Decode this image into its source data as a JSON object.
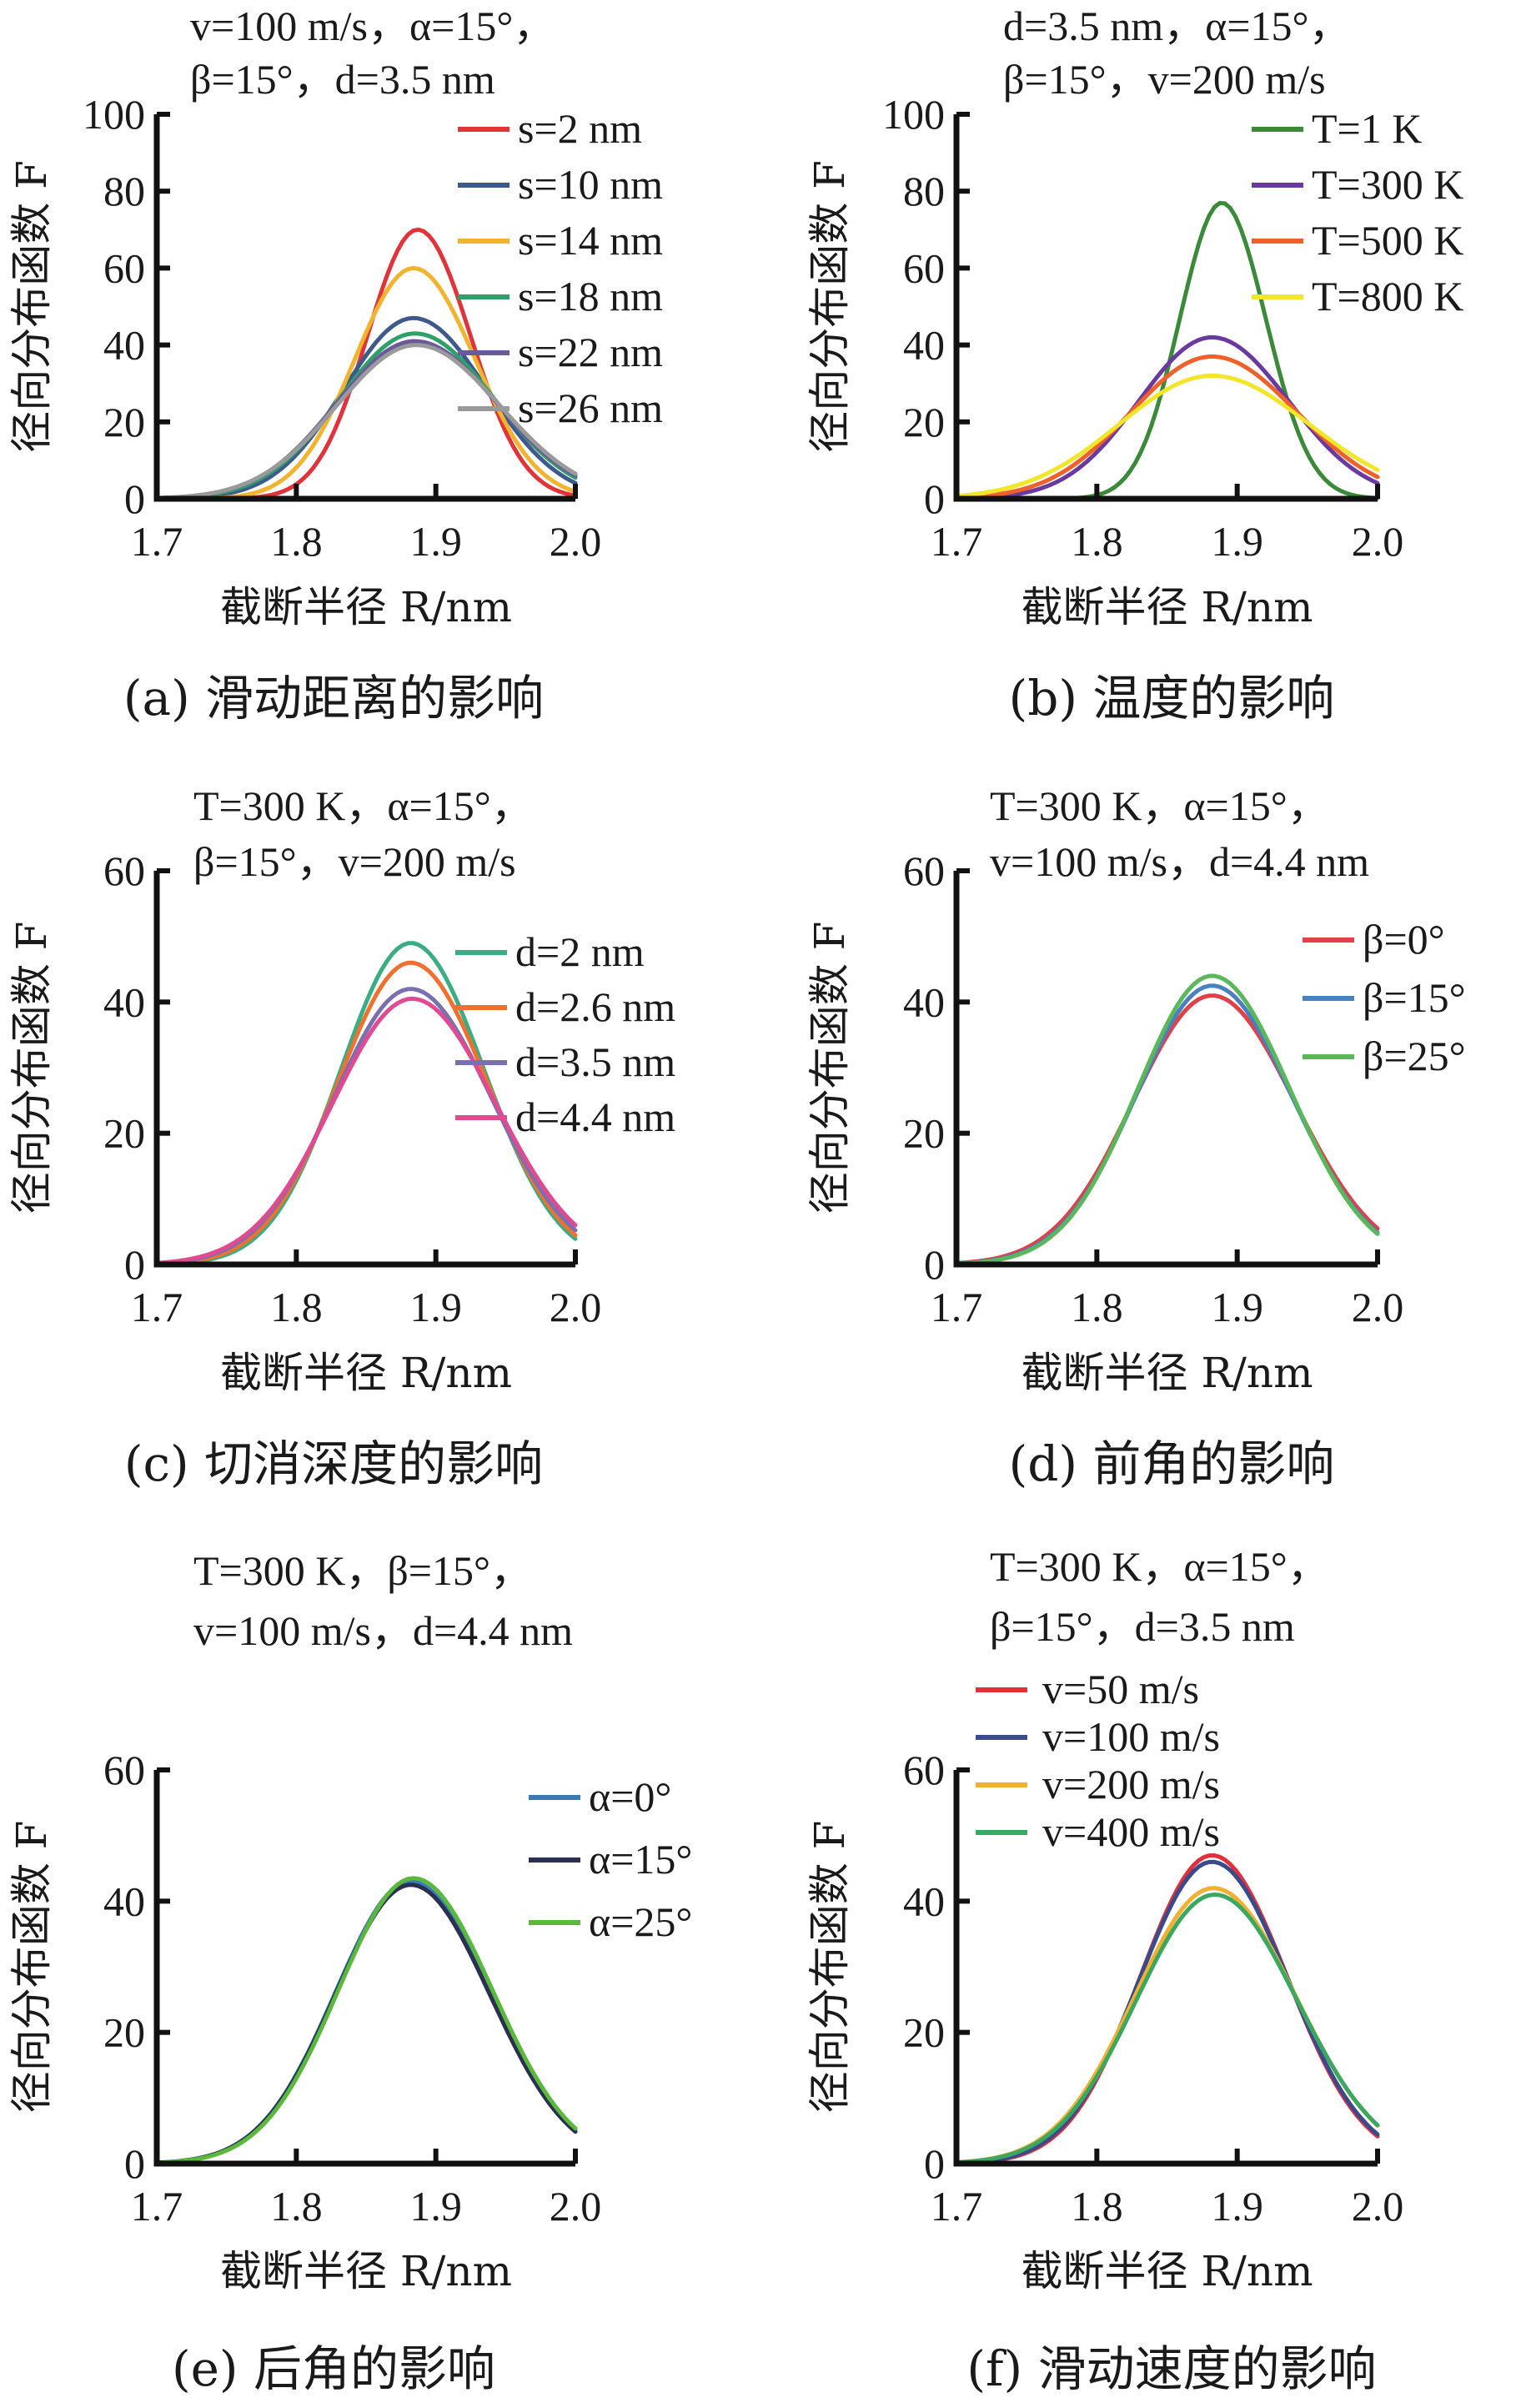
{
  "figure": {
    "y_axis_label": "径向分布函数 F",
    "x_axis_label": "截断半径 R/nm"
  },
  "chart_data": [
    {
      "id": "a",
      "type": "line",
      "caption": "(a) 滑动距离的影响",
      "params": [
        "v=100 m/s，α=15°，",
        "β=15°，d=3.5 nm"
      ],
      "xlabel": "截断半径 R/nm",
      "ylabel": "径向分布函数 F",
      "xlim": [
        1.7,
        2.0
      ],
      "ylim": [
        0,
        100
      ],
      "xticks": [
        "1.7",
        "1.8",
        "1.9",
        "2.0"
      ],
      "yticks": [
        "0",
        "20",
        "40",
        "60",
        "80",
        "100"
      ],
      "legend_position": "top-right",
      "series": [
        {
          "name": "s=2 nm",
          "color": "#e0343a",
          "peak": 70,
          "center": 1.887,
          "width": 0.036,
          "base": 0
        },
        {
          "name": "s=10 nm",
          "color": "#3e5a8c",
          "peak": 47,
          "center": 1.884,
          "width": 0.05,
          "base": 0
        },
        {
          "name": "s=14 nm",
          "color": "#f2b42e",
          "peak": 60,
          "center": 1.884,
          "width": 0.042,
          "base": 0
        },
        {
          "name": "s=18 nm",
          "color": "#2fa06a",
          "peak": 43,
          "center": 1.885,
          "width": 0.054,
          "base": 0
        },
        {
          "name": "s=22 nm",
          "color": "#6a5a9a",
          "peak": 41,
          "center": 1.885,
          "width": 0.056,
          "base": 0
        },
        {
          "name": "s=26 nm",
          "color": "#9a9a9a",
          "peak": 40,
          "center": 1.886,
          "width": 0.057,
          "base": 0
        }
      ]
    },
    {
      "id": "b",
      "type": "line",
      "caption": "(b) 温度的影响",
      "params": [
        "d=3.5 nm，α=15°，",
        "β=15°，v=200 m/s"
      ],
      "xlabel": "截断半径 R/nm",
      "ylabel": "径向分布函数 F",
      "xlim": [
        1.7,
        2.0
      ],
      "ylim": [
        0,
        100
      ],
      "xticks": [
        "1.7",
        "1.8",
        "1.9",
        "2.0"
      ],
      "yticks": [
        "0",
        "20",
        "40",
        "60",
        "80",
        "100"
      ],
      "legend_position": "top-right",
      "series": [
        {
          "name": "T=1 K",
          "color": "#3a8a3a",
          "peak": 77,
          "center": 1.889,
          "width": 0.03,
          "base": 0
        },
        {
          "name": "T=300 K",
          "color": "#6a3aa0",
          "peak": 42,
          "center": 1.882,
          "width": 0.052,
          "base": 0
        },
        {
          "name": "T=500 K",
          "color": "#f0602a",
          "peak": 37,
          "center": 1.882,
          "width": 0.058,
          "base": 0
        },
        {
          "name": "T=800 K",
          "color": "#f2e62a",
          "peak": 32,
          "center": 1.882,
          "width": 0.066,
          "base": 0
        }
      ]
    },
    {
      "id": "c",
      "type": "line",
      "caption": "(c) 切消深度的影响",
      "params": [
        "T=300 K，α=15°，",
        "β=15°，v=200 m/s"
      ],
      "xlabel": "截断半径 R/nm",
      "ylabel": "径向分布函数 F",
      "xlim": [
        1.7,
        2.0
      ],
      "ylim": [
        0,
        60
      ],
      "xticks": [
        "1.7",
        "1.8",
        "1.9",
        "2.0"
      ],
      "yticks": [
        "0",
        "20",
        "40",
        "60"
      ],
      "legend_position": "right",
      "series": [
        {
          "name": "d=2 nm",
          "color": "#3aae82",
          "peak": 49,
          "center": 1.882,
          "width": 0.05,
          "base": 0
        },
        {
          "name": "d=2.6 nm",
          "color": "#f07030",
          "peak": 46,
          "center": 1.882,
          "width": 0.052,
          "base": 0
        },
        {
          "name": "d=3.5 nm",
          "color": "#7a70b0",
          "peak": 42,
          "center": 1.882,
          "width": 0.055,
          "base": 0
        },
        {
          "name": "d=4.4 nm",
          "color": "#e04a90",
          "peak": 40.5,
          "center": 1.883,
          "width": 0.057,
          "base": 0
        }
      ]
    },
    {
      "id": "d",
      "type": "line",
      "caption": "(d) 前角的影响",
      "params": [
        "T=300 K，α=15°，",
        "v=100 m/s，d=4.4 nm"
      ],
      "xlabel": "截断半径 R/nm",
      "ylabel": "径向分布函数 F",
      "xlim": [
        1.7,
        2.0
      ],
      "ylim": [
        0,
        60
      ],
      "xticks": [
        "1.7",
        "1.8",
        "1.9",
        "2.0"
      ],
      "yticks": [
        "0",
        "20",
        "40",
        "60"
      ],
      "legend_position": "right",
      "series": [
        {
          "name": "β=0°",
          "color": "#e04048",
          "peak": 41,
          "center": 1.882,
          "width": 0.056,
          "base": 0
        },
        {
          "name": "β=15°",
          "color": "#4a80c0",
          "peak": 42.5,
          "center": 1.882,
          "width": 0.054,
          "base": 0
        },
        {
          "name": "β=25°",
          "color": "#5ab85a",
          "peak": 44,
          "center": 1.882,
          "width": 0.053,
          "base": 0
        }
      ]
    },
    {
      "id": "e",
      "type": "line",
      "caption": "(e) 后角的影响",
      "params": [
        "T=300 K，β=15°，",
        "v=100 m/s，d=4.4 nm"
      ],
      "xlabel": "截断半径 R/nm",
      "ylabel": "径向分布函数 F",
      "xlim": [
        1.7,
        2.0
      ],
      "ylim": [
        0,
        60
      ],
      "xticks": [
        "1.7",
        "1.8",
        "1.9",
        "2.0"
      ],
      "yticks": [
        "0",
        "20",
        "40",
        "60"
      ],
      "legend_position": "top-right",
      "series": [
        {
          "name": "α=0°",
          "color": "#3a7ab8",
          "peak": 43,
          "center": 1.882,
          "width": 0.054,
          "base": 0
        },
        {
          "name": "α=15°",
          "color": "#2a3050",
          "peak": 42.5,
          "center": 1.882,
          "width": 0.054,
          "base": 0
        },
        {
          "name": "α=25°",
          "color": "#5ab83a",
          "peak": 43.5,
          "center": 1.884,
          "width": 0.054,
          "base": 0
        }
      ]
    },
    {
      "id": "f",
      "type": "line",
      "caption": "(f) 滑动速度的影响",
      "params": [
        "T=300 K，α=15°，",
        "β=15°，d=3.5 nm"
      ],
      "xlabel": "截断半径 R/nm",
      "ylabel": "径向分布函数 F",
      "xlim": [
        1.7,
        2.0
      ],
      "ylim": [
        0,
        60
      ],
      "xticks": [
        "1.7",
        "1.8",
        "1.9",
        "2.0"
      ],
      "yticks": [
        "0",
        "20",
        "40",
        "60"
      ],
      "legend_position": "top-left",
      "series": [
        {
          "name": "v=50 m/s",
          "color": "#e0303a",
          "peak": 47,
          "center": 1.882,
          "width": 0.051,
          "base": 0
        },
        {
          "name": "v=100 m/s",
          "color": "#3a4a8a",
          "peak": 46,
          "center": 1.882,
          "width": 0.052,
          "base": 0
        },
        {
          "name": "v=200 m/s",
          "color": "#f2b030",
          "peak": 42,
          "center": 1.883,
          "width": 0.056,
          "base": 0
        },
        {
          "name": "v=400 m/s",
          "color": "#3aa860",
          "peak": 41,
          "center": 1.884,
          "width": 0.056,
          "base": 0
        }
      ]
    }
  ]
}
